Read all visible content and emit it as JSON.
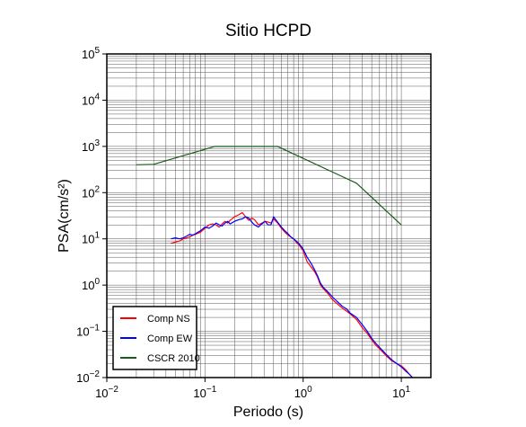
{
  "chart_data": {
    "type": "line",
    "title": "Sitio HCPD",
    "xlabel": "Periodo (s)",
    "ylabel": "PSA(cm/s²)",
    "x_scale": "log",
    "y_scale": "log",
    "xlim": [
      0.01,
      20
    ],
    "ylim": [
      0.01,
      100000
    ],
    "grid": true,
    "legend_position": "bottom-left",
    "x_ticks": [
      {
        "value": 0.01,
        "base": "10",
        "exp": "−2"
      },
      {
        "value": 0.1,
        "base": "10",
        "exp": "−1"
      },
      {
        "value": 1,
        "base": "10",
        "exp": "0"
      },
      {
        "value": 10,
        "base": "10",
        "exp": "1"
      }
    ],
    "y_ticks": [
      {
        "value": 0.01,
        "base": "10",
        "exp": "−2"
      },
      {
        "value": 0.1,
        "base": "10",
        "exp": "−1"
      },
      {
        "value": 1,
        "base": "10",
        "exp": "0"
      },
      {
        "value": 10,
        "base": "10",
        "exp": "1"
      },
      {
        "value": 100,
        "base": "10",
        "exp": "2"
      },
      {
        "value": 1000,
        "base": "10",
        "exp": "3"
      },
      {
        "value": 10000,
        "base": "10",
        "exp": "4"
      },
      {
        "value": 100000,
        "base": "10",
        "exp": "5"
      }
    ],
    "series": [
      {
        "name": "Comp NS",
        "color": "#ff0000",
        "x": [
          0.045,
          0.05,
          0.055,
          0.06,
          0.065,
          0.07,
          0.075,
          0.08,
          0.09,
          0.1,
          0.11,
          0.12,
          0.13,
          0.14,
          0.15,
          0.16,
          0.17,
          0.18,
          0.2,
          0.22,
          0.24,
          0.26,
          0.28,
          0.3,
          0.32,
          0.35,
          0.38,
          0.41,
          0.44,
          0.47,
          0.5,
          0.55,
          0.6,
          0.65,
          0.7,
          0.75,
          0.8,
          0.85,
          0.9,
          0.95,
          1.0,
          1.1,
          1.2,
          1.3,
          1.4,
          1.5,
          1.6,
          1.8,
          2.0,
          2.2,
          2.5,
          2.8,
          3.0,
          3.5,
          4.0,
          4.5,
          5.0,
          5.5,
          6.0,
          7.0,
          8.0,
          9.0,
          10.0,
          11.0,
          12.0,
          13.0
        ],
        "y": [
          8,
          8.5,
          9,
          10,
          10.5,
          11,
          12,
          12.5,
          14,
          17,
          20,
          21,
          20,
          18,
          21,
          24,
          22,
          25,
          30,
          33,
          37,
          30,
          25,
          28,
          26,
          20,
          22,
          24,
          23,
          22,
          27,
          22,
          17,
          14,
          12,
          11,
          10,
          8.5,
          7.5,
          6.5,
          5.5,
          3.2,
          2.5,
          2.0,
          1.5,
          1.0,
          0.85,
          0.65,
          0.48,
          0.4,
          0.32,
          0.27,
          0.24,
          0.18,
          0.12,
          0.09,
          0.065,
          0.05,
          0.042,
          0.03,
          0.023,
          0.02,
          0.018,
          0.015,
          0.012,
          0.01
        ]
      },
      {
        "name": "Comp EW",
        "color": "#0000ff",
        "x": [
          0.045,
          0.05,
          0.055,
          0.06,
          0.065,
          0.07,
          0.075,
          0.08,
          0.09,
          0.1,
          0.11,
          0.12,
          0.13,
          0.14,
          0.15,
          0.16,
          0.17,
          0.18,
          0.2,
          0.22,
          0.24,
          0.26,
          0.28,
          0.3,
          0.32,
          0.35,
          0.38,
          0.41,
          0.44,
          0.47,
          0.5,
          0.55,
          0.6,
          0.65,
          0.7,
          0.75,
          0.8,
          0.85,
          0.9,
          0.95,
          1.0,
          1.1,
          1.2,
          1.3,
          1.4,
          1.5,
          1.6,
          1.8,
          2.0,
          2.2,
          2.5,
          2.8,
          3.0,
          3.5,
          4.0,
          4.5,
          5.0,
          5.5,
          6.0,
          7.0,
          8.0,
          9.0,
          10.0,
          11.0,
          12.0,
          13.0
        ],
        "y": [
          10,
          10.5,
          10,
          10.5,
          11.5,
          12.5,
          12,
          13,
          15,
          18,
          17,
          19,
          22,
          20,
          19,
          22,
          24,
          21,
          24,
          26,
          27,
          30,
          28,
          23,
          20,
          18,
          21,
          24,
          20,
          20,
          30,
          23,
          18,
          15,
          13,
          11,
          10,
          9,
          8,
          7,
          6,
          4.0,
          3.0,
          2.2,
          1.6,
          1.1,
          0.9,
          0.7,
          0.55,
          0.45,
          0.35,
          0.3,
          0.25,
          0.2,
          0.14,
          0.1,
          0.07,
          0.055,
          0.045,
          0.032,
          0.024,
          0.02,
          0.017,
          0.014,
          0.012,
          0.01
        ]
      },
      {
        "name": "CSCR 2010",
        "color": "#1a5c1a",
        "x": [
          0.02,
          0.03,
          0.125,
          0.55,
          3.5,
          10
        ],
        "y": [
          400,
          410,
          1000,
          1000,
          160,
          20
        ]
      }
    ]
  }
}
